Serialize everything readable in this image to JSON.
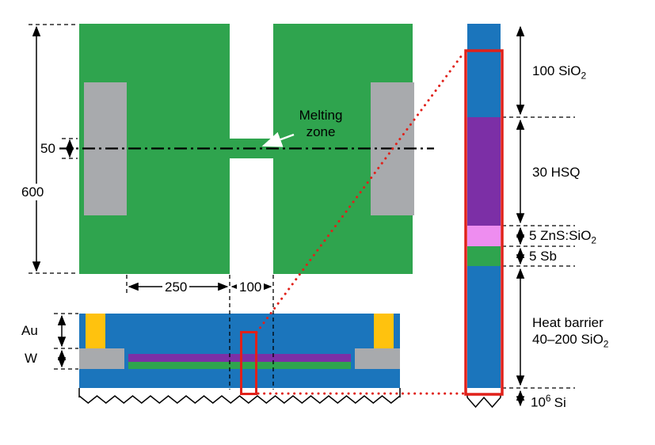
{
  "colors": {
    "green": "#2fa44e",
    "gray": "#a8aaad",
    "blue": "#1b75bc",
    "purple": "#7c2fa6",
    "pink": "#ee8df0",
    "gold": "#ffc20e",
    "red": "#e0211a"
  },
  "top_view": {
    "height_dim": "600",
    "bridge_height_dim": "50",
    "left_gap_dim": "250",
    "bridge_width_dim": "100",
    "melting_zone_line1": "Melting",
    "melting_zone_line2": "zone"
  },
  "cross_section": {
    "au_label": "Au",
    "w_label": "W"
  },
  "stack": {
    "sio2_cap": {
      "prefix": "100 SiO",
      "sub": "2"
    },
    "hsq": {
      "label": "30 HSQ"
    },
    "zns": {
      "prefix": "5 ZnS:SiO",
      "sub": "2"
    },
    "sb": {
      "label": "5 Sb"
    },
    "heat_barrier": {
      "line1": "Heat barrier",
      "line2_prefix": "40–200 SiO",
      "line2_sub": "2"
    },
    "si": {
      "prefix": "10",
      "sup": "6",
      "suffix": "Si"
    }
  }
}
